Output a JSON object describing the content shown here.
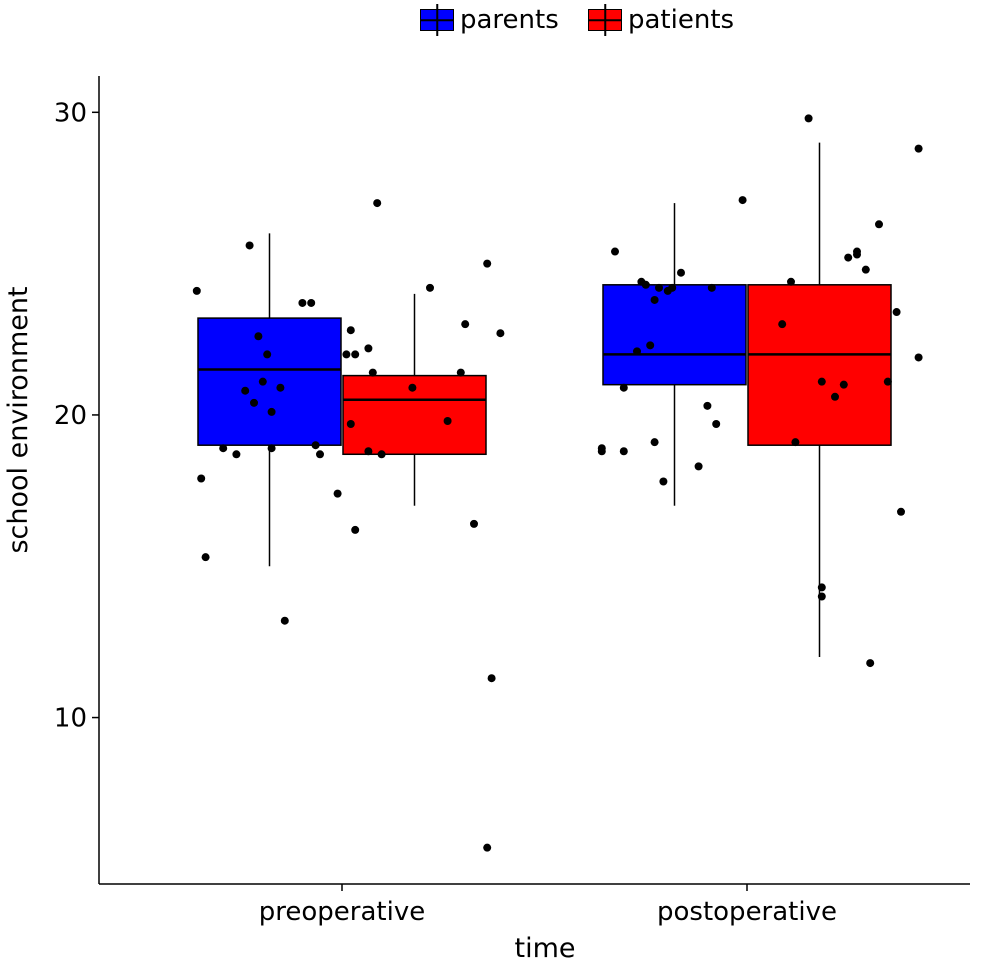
{
  "chart_data": {
    "type": "boxplot",
    "title": "",
    "xlabel": "time",
    "ylabel": "school environment",
    "categories": [
      "preoperative",
      "postoperative"
    ],
    "ylim": [
      4.5,
      31.2
    ],
    "yticks": [
      10,
      20,
      30
    ],
    "grid": false,
    "legend_position": "top",
    "series": [
      {
        "name": "parents",
        "color": "#0000ff",
        "boxes": [
          {
            "category": "preoperative",
            "whisker_low": 15,
            "q1": 19,
            "median": 21.5,
            "q3": 23.2,
            "whisker_high": 26,
            "points": [
              [
                -0.33,
                24.1
              ],
              [
                -0.32,
                17.9
              ],
              [
                -0.31,
                15.3
              ],
              [
                -0.27,
                18.9
              ],
              [
                -0.24,
                18.7
              ],
              [
                -0.22,
                20.8
              ],
              [
                -0.21,
                25.6
              ],
              [
                -0.2,
                20.4
              ],
              [
                -0.19,
                22.6
              ],
              [
                -0.18,
                21.1
              ],
              [
                -0.17,
                22.0
              ],
              [
                -0.16,
                20.1
              ],
              [
                -0.16,
                18.9
              ],
              [
                -0.14,
                20.9
              ],
              [
                -0.13,
                13.2
              ],
              [
                -0.09,
                23.7
              ],
              [
                -0.07,
                23.7
              ],
              [
                -0.06,
                19.0
              ],
              [
                -0.05,
                18.7
              ],
              [
                0.01,
                22.0
              ],
              [
                0.02,
                22.8
              ],
              [
                0.03,
                22.0
              ],
              [
                0.07,
                21.4
              ]
            ]
          },
          {
            "category": "postoperative",
            "whisker_low": 17,
            "q1": 21,
            "median": 22,
            "q3": 24.3,
            "whisker_high": 27,
            "points": [
              [
                -0.33,
                18.8
              ],
              [
                -0.33,
                18.9
              ],
              [
                -0.3,
                25.4
              ],
              [
                -0.28,
                18.8
              ],
              [
                -0.28,
                20.9
              ],
              [
                -0.25,
                22.1
              ],
              [
                -0.24,
                24.4
              ],
              [
                -0.23,
                24.3
              ],
              [
                -0.22,
                22.3
              ],
              [
                -0.21,
                19.1
              ],
              [
                -0.21,
                23.8
              ],
              [
                -0.2,
                24.2
              ],
              [
                -0.19,
                17.8
              ],
              [
                -0.18,
                24.1
              ],
              [
                -0.17,
                24.2
              ],
              [
                -0.15,
                24.7
              ],
              [
                -0.11,
                18.3
              ],
              [
                -0.09,
                20.3
              ],
              [
                -0.08,
                24.2
              ],
              [
                -0.07,
                19.7
              ],
              [
                -0.01,
                27.1
              ]
            ]
          }
        ]
      },
      {
        "name": "patients",
        "color": "#ff0000",
        "boxes": [
          {
            "category": "preoperative",
            "whisker_low": 17,
            "q1": 18.7,
            "median": 20.5,
            "q3": 21.3,
            "whisker_high": 24,
            "points": [
              [
                -0.01,
                17.4
              ],
              [
                0.02,
                19.7
              ],
              [
                0.03,
                16.2
              ],
              [
                0.06,
                22.2
              ],
              [
                0.06,
                18.8
              ],
              [
                0.09,
                18.7
              ],
              [
                0.08,
                27.0
              ],
              [
                0.16,
                20.9
              ],
              [
                0.2,
                24.2
              ],
              [
                0.24,
                19.8
              ],
              [
                0.27,
                21.4
              ],
              [
                0.28,
                23.0
              ],
              [
                0.3,
                16.4
              ],
              [
                0.33,
                5.7
              ],
              [
                0.33,
                25.0
              ],
              [
                0.34,
                11.3
              ],
              [
                0.36,
                22.7
              ]
            ]
          },
          {
            "category": "postoperative",
            "whisker_low": 12,
            "q1": 19,
            "median": 22,
            "q3": 24.3,
            "whisker_high": 29,
            "points": [
              [
                0.08,
                23.0
              ],
              [
                0.1,
                24.4
              ],
              [
                0.11,
                19.1
              ],
              [
                0.14,
                29.8
              ],
              [
                0.17,
                14.3
              ],
              [
                0.17,
                14.0
              ],
              [
                0.17,
                21.1
              ],
              [
                0.2,
                20.6
              ],
              [
                0.22,
                21.0
              ],
              [
                0.23,
                25.2
              ],
              [
                0.25,
                25.4
              ],
              [
                0.25,
                25.3
              ],
              [
                0.27,
                24.8
              ],
              [
                0.28,
                11.8
              ],
              [
                0.3,
                26.3
              ],
              [
                0.32,
                21.1
              ],
              [
                0.34,
                23.4
              ],
              [
                0.35,
                16.8
              ],
              [
                0.39,
                28.8
              ],
              [
                0.39,
                21.9
              ]
            ]
          }
        ]
      }
    ]
  }
}
